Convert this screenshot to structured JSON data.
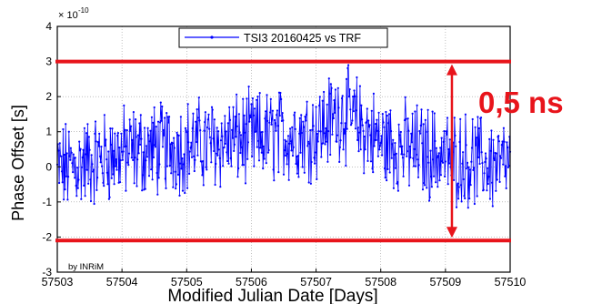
{
  "chart_data": {
    "type": "line",
    "xlabel": "Modified Julian Date [Days]",
    "ylabel": "Phase Offset [s]",
    "y_scale_label": "× 10",
    "y_scale_exponent": "-10",
    "xlim": [
      57503,
      57510
    ],
    "ylim": [
      -3,
      4
    ],
    "x_ticks": [
      57503,
      57504,
      57505,
      57506,
      57507,
      57508,
      57509,
      57510
    ],
    "x_tick_labels": [
      "57503",
      "57504",
      "57505",
      "57506",
      "57507",
      "57508",
      "57509",
      "57510"
    ],
    "y_ticks": [
      -3,
      -2,
      -1,
      0,
      1,
      2,
      3,
      4
    ],
    "y_tick_labels": [
      "-3",
      "-2",
      "-1",
      "0",
      "1",
      "2",
      "3",
      "4"
    ],
    "grid": true,
    "legend": "top-center",
    "series": [
      {
        "name": "TSI3 20160425 vs TRF",
        "color": "#0000ff",
        "marker": "dot",
        "description_points": "dense noisy series, ~700 samples, mean rising from ~0 at 57503 to ~1 near 57507.4 and back to ~0 at 57510, spread about ±1.2",
        "trend_x": [
          57503,
          57504,
          57505,
          57506,
          57507,
          57507.4,
          57508,
          57509,
          57510
        ],
        "trend_y": [
          -0.1,
          0.4,
          0.6,
          0.8,
          1.0,
          1.6,
          0.7,
          0.3,
          0.0
        ],
        "spread": 1.1
      }
    ],
    "annotations": {
      "upper_line_y": 3.0,
      "lower_line_y": -2.1,
      "line_color": "#e8141b",
      "arrow_x": 57509.1,
      "label": "0,5 ns",
      "watermark": "by INRiM"
    }
  }
}
